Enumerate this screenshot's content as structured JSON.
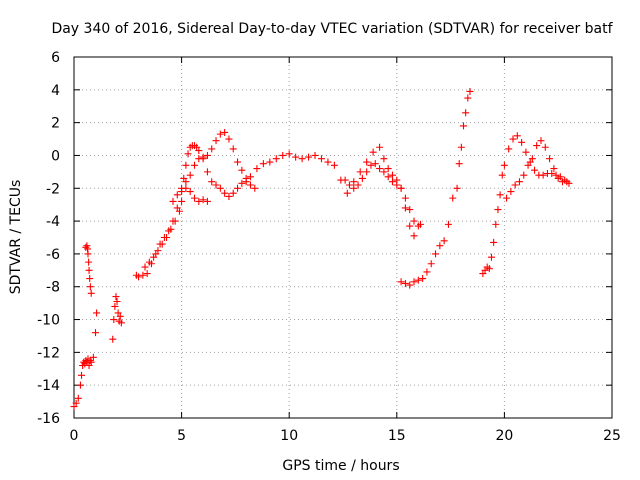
{
  "chart_data": {
    "type": "scatter",
    "title": "Day 340 of 2016, Sidereal Day-to-day VTEC variation (SDTVAR) for receiver batf",
    "xlabel": "GPS time / hours",
    "ylabel": "SDTVAR / TECUs",
    "xlim": [
      0,
      25
    ],
    "ylim": [
      -16,
      6
    ],
    "xticks": [
      "0",
      "5",
      "10",
      "15",
      "20",
      "25"
    ],
    "yticks": [
      "-16",
      "-14",
      "-12",
      "-10",
      "-8",
      "-6",
      "-4",
      "-2",
      "0",
      "2",
      "4",
      "6"
    ],
    "grid": true,
    "marker": "+",
    "series": [
      {
        "color": "#ff0000",
        "x": [
          0.0,
          0.1,
          0.2,
          0.3,
          0.35,
          0.4,
          0.45,
          0.5,
          0.55,
          0.6,
          0.65,
          0.7,
          0.75,
          0.8,
          0.9,
          1.0,
          1.05,
          0.55,
          0.6,
          0.63,
          0.65,
          0.68,
          0.7,
          0.73,
          0.76,
          0.8,
          1.8,
          1.85,
          1.9,
          1.95,
          2.0,
          2.05,
          2.1,
          2.15,
          2.2,
          2.9,
          3.0,
          3.2,
          3.4,
          3.6,
          3.8,
          4.0,
          4.2,
          4.4,
          4.6,
          4.8,
          5.0,
          5.1,
          5.2,
          5.3,
          5.4,
          5.5,
          5.6,
          5.7,
          5.8,
          6.0,
          6.2,
          6.4,
          6.6,
          6.8,
          7.0,
          7.2,
          7.4,
          7.6,
          7.8,
          8.0,
          8.2,
          8.5,
          8.8,
          9.1,
          9.4,
          9.7,
          10.0,
          10.3,
          10.6,
          10.9,
          11.2,
          11.5,
          11.8,
          12.1,
          12.4,
          12.7,
          13.0,
          13.3,
          13.6,
          13.9,
          14.2,
          14.4,
          14.6,
          14.8,
          15.0,
          15.2,
          15.4,
          15.6,
          15.8,
          3.3,
          3.5,
          3.7,
          3.9,
          4.1,
          4.3,
          4.5,
          4.7,
          4.9,
          5.0,
          5.2,
          5.4,
          5.6,
          5.8,
          6.0,
          6.2,
          6.4,
          6.6,
          6.8,
          7.0,
          7.2,
          7.4,
          7.6,
          7.8,
          8.0,
          8.2,
          8.4,
          4.6,
          4.8,
          5.0,
          5.2,
          5.4,
          5.6,
          5.8,
          6.0,
          6.2,
          12.6,
          12.8,
          13.0,
          13.2,
          13.4,
          13.6,
          13.8,
          14.0,
          14.2,
          14.4,
          14.6,
          14.8,
          15.0,
          15.2,
          15.4,
          15.6,
          15.8,
          16.0,
          16.1,
          15.2,
          15.4,
          15.6,
          15.8,
          16.0,
          16.2,
          16.4,
          16.6,
          16.8,
          17.0,
          17.2,
          17.4,
          17.6,
          17.8,
          17.9,
          18.0,
          18.1,
          18.2,
          18.3,
          18.4,
          19.0,
          19.1,
          19.2,
          19.3,
          19.4,
          19.5,
          19.6,
          19.7,
          19.8,
          19.9,
          20.0,
          20.2,
          20.4,
          20.6,
          20.8,
          21.0,
          21.2,
          21.4,
          21.6,
          21.8,
          22.0,
          22.2,
          22.4,
          22.6,
          22.8,
          23.0,
          20.1,
          20.3,
          20.5,
          20.7,
          20.9,
          21.1,
          21.3,
          21.5,
          21.7,
          21.9,
          22.1,
          22.3,
          22.5,
          22.7,
          22.9
        ],
        "y": [
          -15.3,
          -15.1,
          -14.8,
          -14.0,
          -13.4,
          -12.8,
          -12.6,
          -12.7,
          -12.5,
          -12.6,
          -12.4,
          -12.8,
          -12.5,
          -12.6,
          -12.3,
          -10.8,
          -9.6,
          -5.6,
          -5.5,
          -5.7,
          -6.0,
          -6.5,
          -7.0,
          -7.5,
          -8.0,
          -8.4,
          -11.2,
          -10.0,
          -9.2,
          -8.6,
          -8.9,
          -9.6,
          -10.1,
          -9.8,
          -10.2,
          -7.3,
          -7.4,
          -7.3,
          -7.2,
          -6.6,
          -6.0,
          -5.4,
          -5.0,
          -4.6,
          -4.0,
          -3.2,
          -2.2,
          -1.4,
          -0.6,
          0.1,
          0.5,
          0.6,
          0.6,
          0.5,
          0.3,
          -0.2,
          -1.0,
          -1.6,
          -1.8,
          -2.0,
          -2.3,
          -2.5,
          -2.3,
          -2.0,
          -1.7,
          -1.6,
          -1.3,
          -0.8,
          -0.5,
          -0.4,
          -0.2,
          0.0,
          0.1,
          -0.1,
          -0.2,
          -0.1,
          0.0,
          -0.2,
          -0.4,
          -0.6,
          -1.5,
          -2.3,
          -1.6,
          -1.0,
          -0.4,
          0.2,
          0.5,
          -0.2,
          -0.8,
          -1.2,
          -1.5,
          -2.0,
          -3.2,
          -4.3,
          -4.9,
          -6.8,
          -6.5,
          -6.2,
          -5.8,
          -5.4,
          -5.0,
          -4.5,
          -4.0,
          -3.4,
          -2.8,
          -2.0,
          -1.2,
          -0.6,
          -0.2,
          -0.1,
          0.0,
          0.4,
          0.9,
          1.3,
          1.4,
          1.0,
          0.4,
          -0.4,
          -0.9,
          -1.4,
          -1.8,
          -2.0,
          -2.8,
          -2.4,
          -2.0,
          -1.6,
          -2.2,
          -2.6,
          -2.8,
          -2.7,
          -2.8,
          -1.5,
          -1.8,
          -2.0,
          -1.8,
          -1.4,
          -1.0,
          -0.6,
          -0.5,
          -0.8,
          -1.0,
          -1.3,
          -1.6,
          -1.8,
          -2.0,
          -2.6,
          -3.3,
          -4.0,
          -4.3,
          -4.2,
          -7.7,
          -7.8,
          -7.9,
          -7.7,
          -7.6,
          -7.5,
          -7.1,
          -6.6,
          -6.0,
          -5.5,
          -5.2,
          -4.2,
          -2.6,
          -2.0,
          -0.5,
          0.5,
          1.8,
          2.6,
          3.5,
          3.9,
          -7.2,
          -7.0,
          -6.8,
          -6.9,
          -6.2,
          -5.3,
          -4.2,
          -3.3,
          -2.4,
          -1.2,
          -0.6,
          0.4,
          1.0,
          1.2,
          0.8,
          0.2,
          -0.4,
          -0.9,
          -1.2,
          -1.2,
          -1.1,
          -1.1,
          -1.2,
          -1.3,
          -1.5,
          -1.7,
          -2.6,
          -2.2,
          -1.8,
          -1.6,
          -1.2,
          -0.6,
          -0.2,
          0.6,
          0.9,
          0.5,
          -0.2,
          -0.8,
          -1.4,
          -1.6,
          -1.6
        ]
      }
    ]
  }
}
